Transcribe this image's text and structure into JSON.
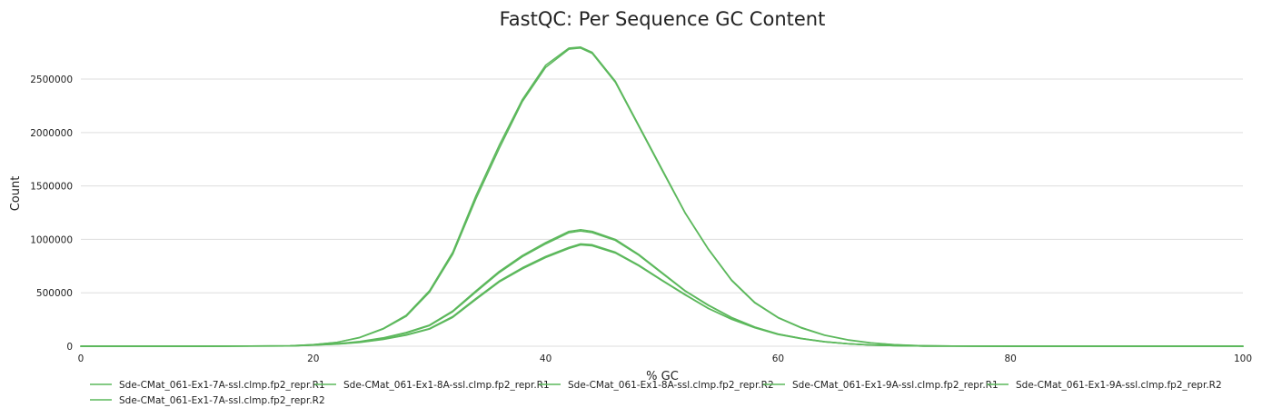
{
  "chart_data": {
    "type": "line",
    "title": "FastQC: Per Sequence GC Content",
    "xlabel": "% GC",
    "ylabel": "Count",
    "xlim": [
      0,
      100
    ],
    "ylim": [
      0,
      2900000
    ],
    "xticks": [
      0,
      20,
      40,
      60,
      80,
      100
    ],
    "yticks": [
      0,
      500000,
      1000000,
      1500000,
      2000000,
      2500000
    ],
    "grid": "horizontal",
    "legend_position": "bottom",
    "line_color": "#5cb85c",
    "series": [
      {
        "name": "Sde-CMat_061-Ex1-7A-ssl.clmp.fp2_repr.R1",
        "x": [
          0,
          10,
          18,
          20,
          22,
          24,
          26,
          28,
          30,
          32,
          34,
          36,
          38,
          40,
          42,
          43,
          44,
          46,
          48,
          50,
          52,
          54,
          56,
          58,
          60,
          62,
          64,
          66,
          68,
          70,
          72,
          75,
          80,
          85,
          100
        ],
        "y": [
          0,
          0,
          2000,
          10000,
          20000,
          37000,
          66000,
          107000,
          165000,
          278000,
          448000,
          610000,
          735000,
          840000,
          925000,
          958000,
          950000,
          880000,
          760000,
          620000,
          485000,
          355000,
          255000,
          175000,
          112000,
          72000,
          42000,
          23000,
          11000,
          5000,
          2000,
          500,
          0,
          0,
          0
        ]
      },
      {
        "name": "Sde-CMat_061-Ex1-8A-ssl.clmp.fp2_repr.R1",
        "x": [
          0,
          10,
          18,
          20,
          22,
          24,
          26,
          28,
          30,
          32,
          34,
          36,
          38,
          40,
          42,
          43,
          44,
          46,
          48,
          50,
          52,
          54,
          56,
          58,
          60,
          62,
          64,
          66,
          68,
          70,
          72,
          75,
          80,
          85,
          100
        ],
        "y": [
          0,
          0,
          4000,
          15000,
          36000,
          83000,
          165000,
          290000,
          520000,
          880000,
          1410000,
          1880000,
          2310000,
          2630000,
          2790000,
          2800000,
          2750000,
          2480000,
          2070000,
          1660000,
          1250000,
          910000,
          620000,
          410000,
          270000,
          175000,
          105000,
          60000,
          32000,
          15000,
          6000,
          1500,
          0,
          0,
          0
        ]
      },
      {
        "name": "Sde-CMat_061-Ex1-8A-ssl.clmp.fp2_repr.R2",
        "x": [
          0,
          10,
          18,
          20,
          22,
          24,
          26,
          28,
          30,
          32,
          34,
          36,
          38,
          40,
          42,
          43,
          44,
          46,
          48,
          50,
          52,
          54,
          56,
          58,
          60,
          62,
          64,
          66,
          68,
          70,
          72,
          75,
          80,
          85,
          100
        ],
        "y": [
          0,
          0,
          4000,
          15000,
          35000,
          80000,
          160000,
          280000,
          505000,
          860000,
          1380000,
          1850000,
          2290000,
          2610000,
          2780000,
          2790000,
          2740000,
          2470000,
          2060000,
          1650000,
          1245000,
          905000,
          615000,
          405000,
          265000,
          170000,
          102000,
          58000,
          30000,
          14000,
          5500,
          1400,
          0,
          0,
          0
        ]
      },
      {
        "name": "Sde-CMat_061-Ex1-9A-ssl.clmp.fp2_repr.R1",
        "x": [
          0,
          10,
          18,
          20,
          22,
          24,
          26,
          28,
          30,
          32,
          34,
          36,
          38,
          40,
          42,
          43,
          44,
          46,
          48,
          50,
          52,
          54,
          56,
          58,
          60,
          62,
          64,
          66,
          68,
          70,
          72,
          75,
          80,
          85,
          100
        ],
        "y": [
          0,
          0,
          2500,
          12000,
          24000,
          44000,
          78000,
          128000,
          198000,
          330000,
          520000,
          700000,
          850000,
          970000,
          1075000,
          1090000,
          1075000,
          1000000,
          860000,
          690000,
          520000,
          385000,
          270000,
          180000,
          115000,
          73000,
          43000,
          24000,
          12000,
          5000,
          2000,
          500,
          0,
          0,
          0
        ]
      },
      {
        "name": "Sde-CMat_061-Ex1-9A-ssl.clmp.fp2_repr.R2",
        "x": [
          0,
          10,
          18,
          20,
          22,
          24,
          26,
          28,
          30,
          32,
          34,
          36,
          38,
          40,
          42,
          43,
          44,
          46,
          48,
          50,
          52,
          54,
          56,
          58,
          60,
          62,
          64,
          66,
          68,
          70,
          72,
          75,
          80,
          85,
          100
        ],
        "y": [
          0,
          0,
          2500,
          11500,
          23000,
          42000,
          75000,
          123000,
          192000,
          322000,
          508000,
          688000,
          838000,
          958000,
          1062000,
          1078000,
          1063000,
          990000,
          852000,
          684000,
          515000,
          381000,
          267000,
          178000,
          113000,
          72000,
          42000,
          23000,
          11500,
          5000,
          2000,
          500,
          0,
          0,
          0
        ]
      },
      {
        "name": "Sde-CMat_061-Ex1-7A-ssl.clmp.fp2_repr.R2",
        "x": [
          0,
          10,
          18,
          20,
          22,
          24,
          26,
          28,
          30,
          32,
          34,
          36,
          38,
          40,
          42,
          43,
          44,
          46,
          48,
          50,
          52,
          54,
          56,
          58,
          60,
          62,
          64,
          66,
          68,
          70,
          72,
          75,
          80,
          85,
          100
        ],
        "y": [
          0,
          0,
          2000,
          9500,
          19000,
          35000,
          63000,
          103000,
          160000,
          270000,
          438000,
          600000,
          725000,
          830000,
          915000,
          948000,
          940000,
          872000,
          753000,
          615000,
          480000,
          352000,
          252000,
          172000,
          110000,
          70000,
          41000,
          22000,
          10500,
          4800,
          1900,
          500,
          0,
          0,
          0
        ]
      }
    ]
  }
}
